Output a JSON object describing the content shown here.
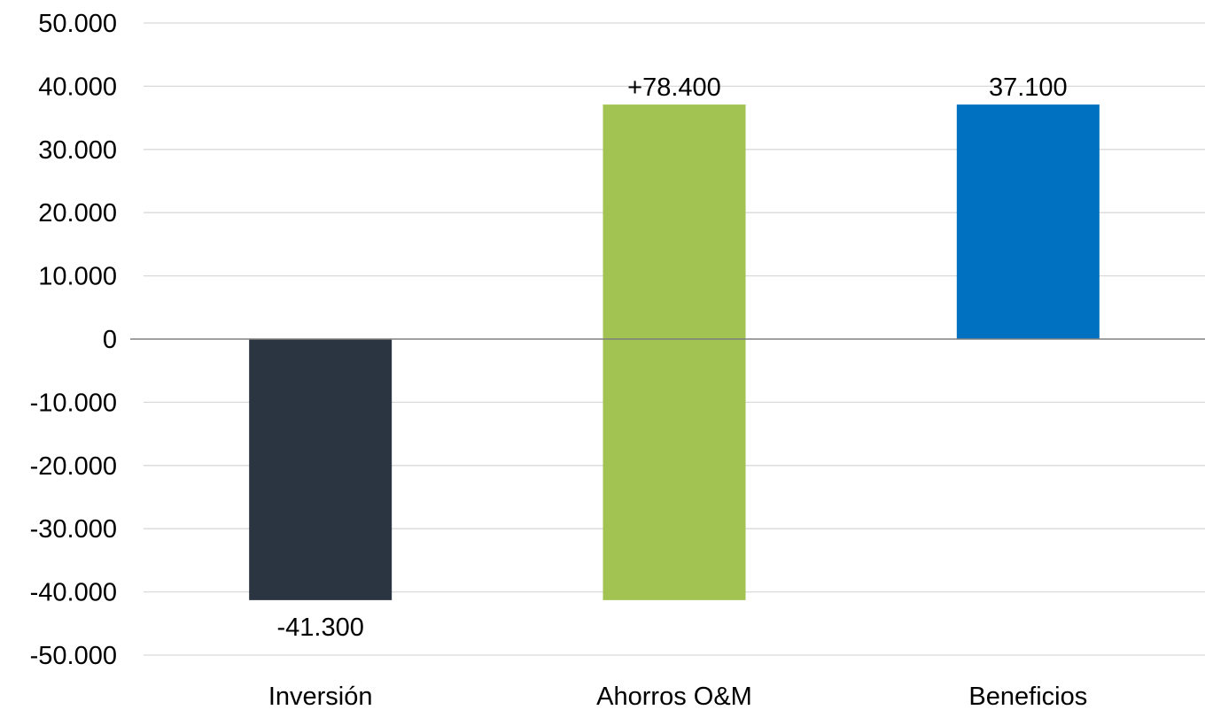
{
  "chart_data": {
    "type": "waterfall",
    "categories": [
      "Inversión",
      "Ahorros O&M",
      "Beneficios"
    ],
    "bars": [
      {
        "category": "Inversión",
        "start": 0,
        "end": -41300,
        "color": "#2A3541",
        "label": "-41.300",
        "label_position": "below"
      },
      {
        "category": "Ahorros O&M",
        "start": -41300,
        "end": 37100,
        "color": "#A2C352",
        "label": "+78.400",
        "label_position": "above"
      },
      {
        "category": "Beneficios",
        "start": 0,
        "end": 37100,
        "color": "#0070C0",
        "label": "37.100",
        "label_position": "above"
      }
    ],
    "ylim": [
      -50000,
      50000
    ],
    "yticks": [
      {
        "value": 50000,
        "label": "50.000"
      },
      {
        "value": 40000,
        "label": "40.000"
      },
      {
        "value": 30000,
        "label": "30.000"
      },
      {
        "value": 20000,
        "label": "20.000"
      },
      {
        "value": 10000,
        "label": "10.000"
      },
      {
        "value": 0,
        "label": "0"
      },
      {
        "value": -10000,
        "label": "-10.000"
      },
      {
        "value": -20000,
        "label": "-20.000"
      },
      {
        "value": -30000,
        "label": "-30.000"
      },
      {
        "value": -40000,
        "label": "-40.000"
      },
      {
        "value": -50000,
        "label": "-50.000"
      }
    ],
    "grid": true,
    "gridline_color": "#D9D9D9",
    "zero_line_color": "#808080",
    "title": "",
    "xlabel": "",
    "ylabel": "",
    "legend": false
  }
}
